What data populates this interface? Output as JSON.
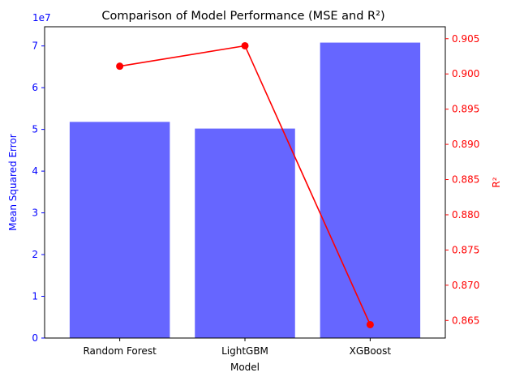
{
  "chart_data": {
    "type": "bar+line",
    "title": "Comparison of Model Performance (MSE and R²)",
    "xlabel": "Model",
    "categories": [
      "Random Forest",
      "LightGBM",
      "XGBoost"
    ],
    "left_axis": {
      "label": "Mean Squared Error",
      "color": "#0000ff",
      "offset_text": "1e7",
      "ylim": [
        0,
        7.46
      ],
      "ticks": [
        0,
        1,
        2,
        3,
        4,
        5,
        6,
        7
      ],
      "tick_labels": [
        "0",
        "1",
        "2",
        "3",
        "4",
        "5",
        "6",
        "7"
      ]
    },
    "right_axis": {
      "label": "R²",
      "color": "#ff0000",
      "ylim": [
        0.8625,
        0.9067
      ],
      "ticks": [
        0.865,
        0.87,
        0.875,
        0.88,
        0.885,
        0.89,
        0.895,
        0.9,
        0.905
      ],
      "tick_labels": [
        "0.865",
        "0.870",
        "0.875",
        "0.880",
        "0.885",
        "0.890",
        "0.895",
        "0.900",
        "0.905"
      ]
    },
    "series": [
      {
        "kind": "bar",
        "axis": "left",
        "color": "#6666ff",
        "values": [
          5.18,
          5.02,
          7.08
        ]
      },
      {
        "kind": "line",
        "axis": "right",
        "color": "#ff0000",
        "marker": "circle",
        "values": [
          0.9011,
          0.904,
          0.8644
        ]
      }
    ],
    "grid": false,
    "legend": "none"
  }
}
